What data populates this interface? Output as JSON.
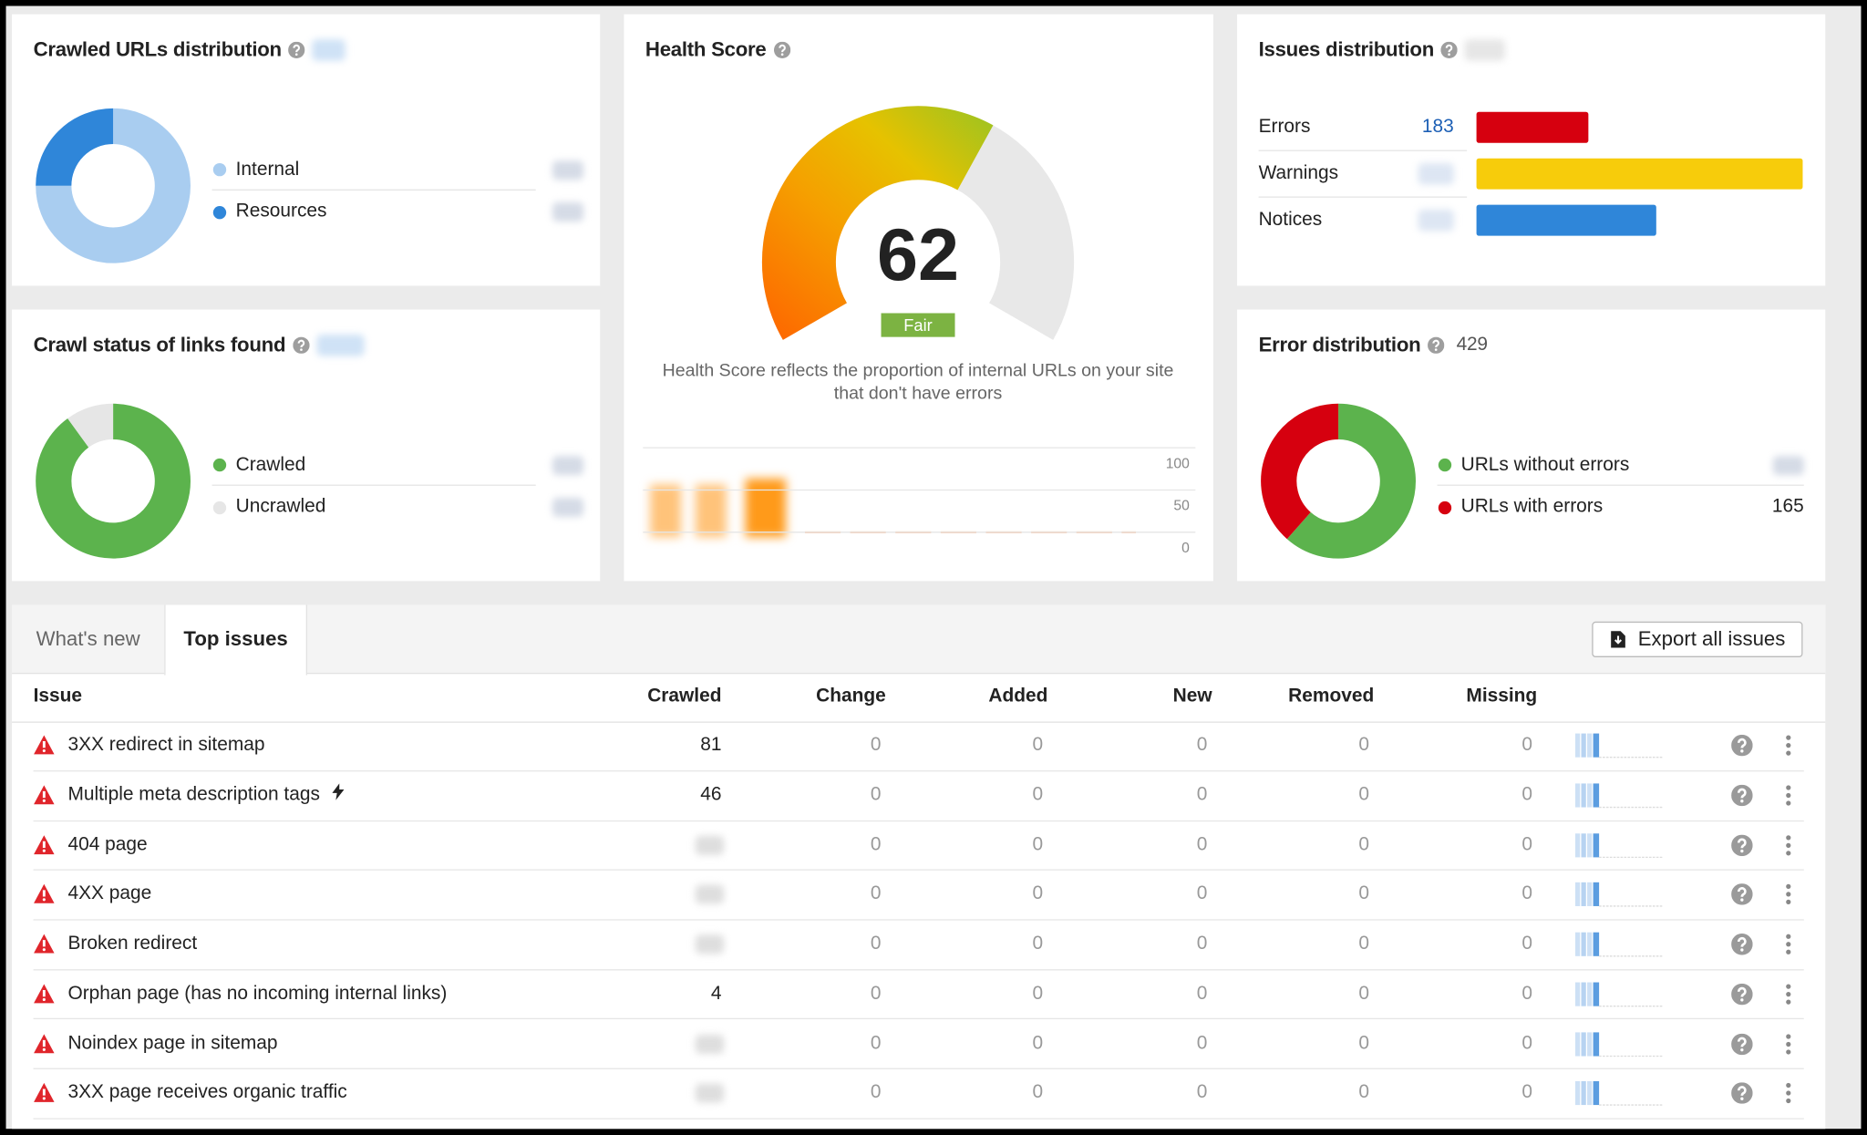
{
  "chart_data": [
    {
      "type": "donut",
      "title": "Crawled URLs distribution",
      "categories": [
        "Internal",
        "Resources"
      ],
      "values": [
        75,
        25
      ],
      "colors": [
        "#a9cdf0",
        "#2f86d9"
      ]
    },
    {
      "type": "donut",
      "title": "Crawl status of links found",
      "categories": [
        "Crawled",
        "Uncrawled"
      ],
      "values": [
        90,
        10
      ],
      "colors": [
        "#5cb34d",
        "#e6e6e6"
      ]
    },
    {
      "type": "gauge",
      "title": "Health Score",
      "value": 62,
      "ylim": [
        0,
        100
      ],
      "label": "Fair",
      "description": "Health Score reflects the proportion of internal URLs on your site that don't have errors",
      "history_ylim": [
        0,
        100
      ],
      "history_yticks": [
        0,
        50,
        100
      ]
    },
    {
      "type": "bar",
      "title": "Issues distribution",
      "categories": [
        "Errors",
        "Warnings",
        "Notices"
      ],
      "values": [
        183,
        533,
        294
      ],
      "value_labels": [
        "183",
        null,
        null
      ],
      "colors": [
        "#d6000f",
        "#f7cc0b",
        "#2f86d9"
      ],
      "xlim": [
        0,
        600
      ]
    },
    {
      "type": "donut",
      "title": "Error distribution",
      "total": 429,
      "categories": [
        "URLs without errors",
        "URLs with errors"
      ],
      "values": [
        264,
        165
      ],
      "value_labels": [
        null,
        "165"
      ],
      "colors": [
        "#5cb34d",
        "#d6000f"
      ]
    }
  ],
  "tabs": [
    "What's new",
    "Top issues"
  ],
  "export_button": "Export all issues",
  "table": {
    "columns": [
      "Issue",
      "Crawled",
      "Change",
      "Added",
      "New",
      "Removed",
      "Missing"
    ],
    "rows": [
      [
        "3XX redirect in sitemap",
        81,
        0,
        0,
        0,
        0,
        0
      ],
      [
        "Multiple meta description tags",
        46,
        0,
        0,
        0,
        0,
        0
      ],
      [
        "404 page",
        null,
        0,
        0,
        0,
        0,
        0
      ],
      [
        "4XX page",
        null,
        0,
        0,
        0,
        0,
        0
      ],
      [
        "Broken redirect",
        null,
        0,
        0,
        0,
        0,
        0
      ],
      [
        "Orphan page (has no incoming internal links)",
        4,
        0,
        0,
        0,
        0,
        0
      ],
      [
        "Noindex page in sitemap",
        null,
        0,
        0,
        0,
        0,
        0
      ],
      [
        "3XX page receives organic traffic",
        null,
        0,
        0,
        0,
        0,
        0
      ]
    ]
  }
}
